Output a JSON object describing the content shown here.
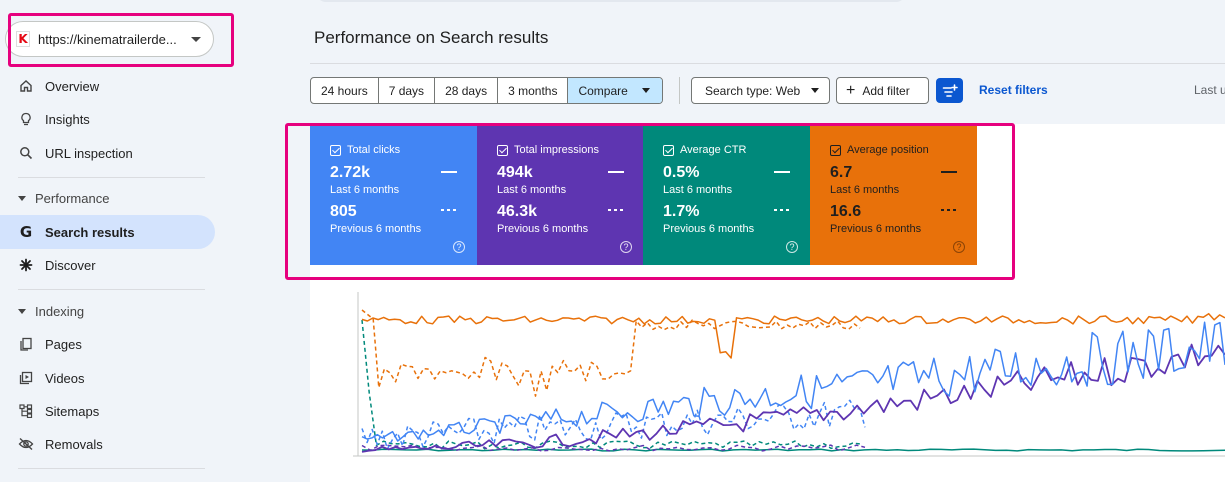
{
  "property": {
    "url": "https://kinematrailerde...",
    "logo_letter": "K"
  },
  "sidebar": {
    "overview": "Overview",
    "insights": "Insights",
    "url_inspection": "URL inspection",
    "performance_section": "Performance",
    "search_results": "Search results",
    "discover": "Discover",
    "indexing_section": "Indexing",
    "pages": "Pages",
    "videos": "Videos",
    "sitemaps": "Sitemaps",
    "removals": "Removals"
  },
  "header": {
    "title": "Performance on Search results"
  },
  "toolbar": {
    "date_ranges": [
      "24 hours",
      "7 days",
      "28 days",
      "3 months"
    ],
    "compare": "Compare",
    "search_type": "Search type: Web",
    "add_filter": "Add filter",
    "reset_filters": "Reset filters",
    "last_updated": "Last u"
  },
  "metrics": [
    {
      "label": "Total clicks",
      "current": "2.72k",
      "current_period": "Last 6 months",
      "previous": "805",
      "previous_period": "Previous 6 months",
      "color": "#4285f4"
    },
    {
      "label": "Total impressions",
      "current": "494k",
      "current_period": "Last 6 months",
      "previous": "46.3k",
      "previous_period": "Previous 6 months",
      "color": "#5e35b1"
    },
    {
      "label": "Average CTR",
      "current": "0.5%",
      "current_period": "Last 6 months",
      "previous": "1.7%",
      "previous_period": "Previous 6 months",
      "color": "#00897b"
    },
    {
      "label": "Average position",
      "current": "6.7",
      "current_period": "Last 6 months",
      "previous": "16.6",
      "previous_period": "Previous 6 months",
      "color": "#e8710a"
    }
  ],
  "chart_data": {
    "type": "line",
    "series": [
      {
        "color": "#e8710a",
        "style": "solid",
        "trend": "flat-high"
      },
      {
        "color": "#e8710a",
        "style": "dashed",
        "trend": "lower-partial"
      },
      {
        "color": "#4285f4",
        "style": "solid",
        "trend": "rising-volatile"
      },
      {
        "color": "#4285f4",
        "style": "dashed",
        "trend": "low-partial"
      },
      {
        "color": "#5e35b1",
        "style": "solid",
        "trend": "rising"
      },
      {
        "color": "#5e35b1",
        "style": "dashed",
        "trend": "flat-low-partial"
      },
      {
        "color": "#00897b",
        "style": "solid",
        "trend": "flat-bottom"
      },
      {
        "color": "#00897b",
        "style": "dashed",
        "trend": "spike-then-low"
      }
    ]
  }
}
